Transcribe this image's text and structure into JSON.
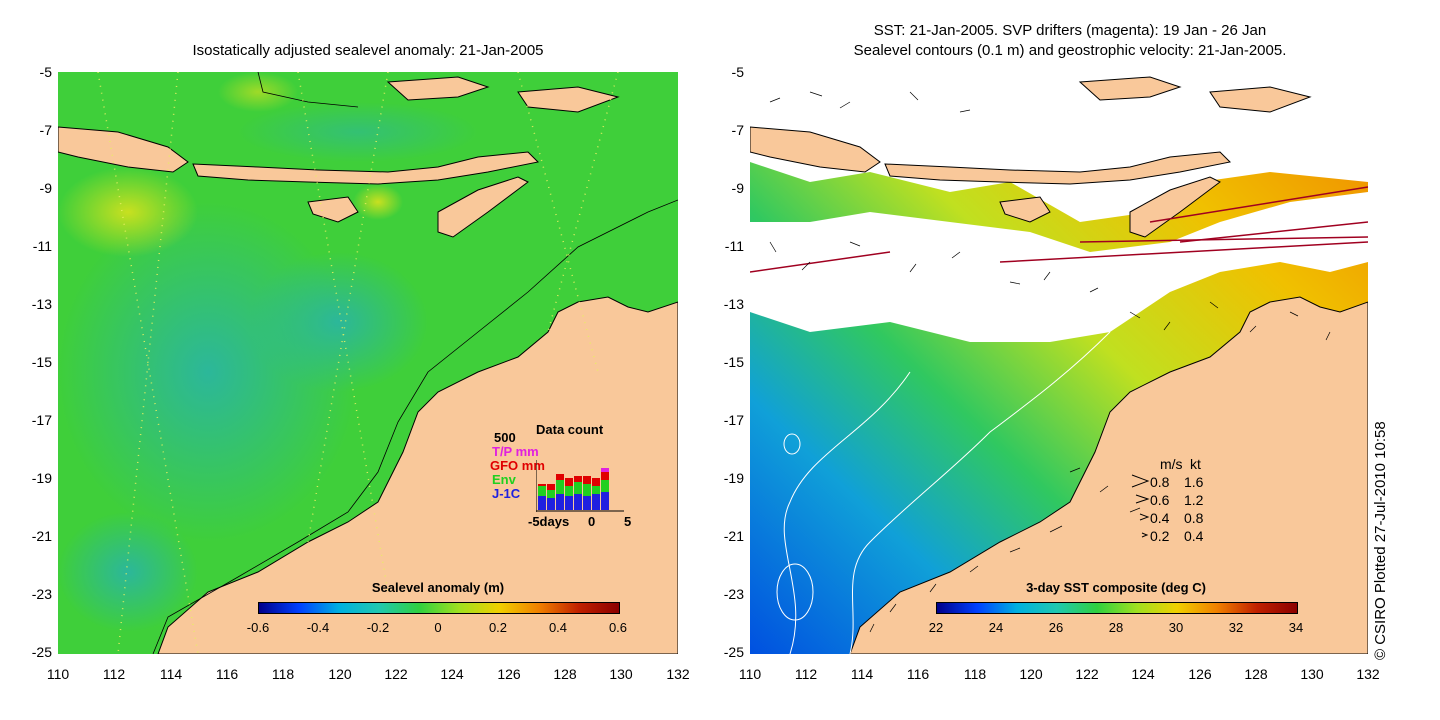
{
  "left_panel": {
    "title": "Isostatically adjusted sealevel anomaly: 21-Jan-2005",
    "colorbar": {
      "label": "Sealevel anomaly (m)",
      "ticks": [
        "-0.6",
        "-0.4",
        "-0.2",
        "0",
        "0.2",
        "0.4",
        "0.6"
      ]
    },
    "data_count": {
      "title": "Data count",
      "max_label": "500",
      "series": [
        {
          "name": "T/P mm",
          "color": "#e020e0"
        },
        {
          "name": "GFO mm",
          "color": "#e00000"
        },
        {
          "name": "Env",
          "color": "#20d020"
        },
        {
          "name": "J-1C",
          "color": "#2020e0"
        }
      ],
      "x_labels": [
        "-5days",
        "0",
        "5"
      ]
    }
  },
  "right_panel": {
    "title_line1": "SST: 21-Jan-2005. SVP drifters (magenta): 19 Jan - 26 Jan",
    "title_line2": "Sealevel contours (0.1 m) and geostrophic velocity: 21-Jan-2005.",
    "colorbar": {
      "label": "3-day SST composite (deg C)",
      "ticks": [
        "22",
        "24",
        "26",
        "28",
        "30",
        "32",
        "34"
      ]
    },
    "velocity_legend": {
      "header_ms": "m/s",
      "header_kt": "kt",
      "rows": [
        {
          "ms": "0.8",
          "kt": "1.6"
        },
        {
          "ms": "0.6",
          "kt": "1.2"
        },
        {
          "ms": "0.4",
          "kt": "0.8"
        },
        {
          "ms": "0.2",
          "kt": "0.4"
        }
      ]
    }
  },
  "axes": {
    "y_ticks": [
      "-5",
      "-7",
      "-9",
      "-11",
      "-13",
      "-15",
      "-17",
      "-19",
      "-21",
      "-23",
      "-25"
    ],
    "x_ticks": [
      "110",
      "112",
      "114",
      "116",
      "118",
      "120",
      "122",
      "124",
      "126",
      "128",
      "130",
      "132"
    ]
  },
  "credit": "© CSIRO Plotted 27-Jul-2010 10:58",
  "colors": {
    "land": "#f9c89a",
    "sea_left": "#3fcf3a",
    "sea_left_dark": "#2fb890",
    "sst_white": "#ffffff"
  }
}
